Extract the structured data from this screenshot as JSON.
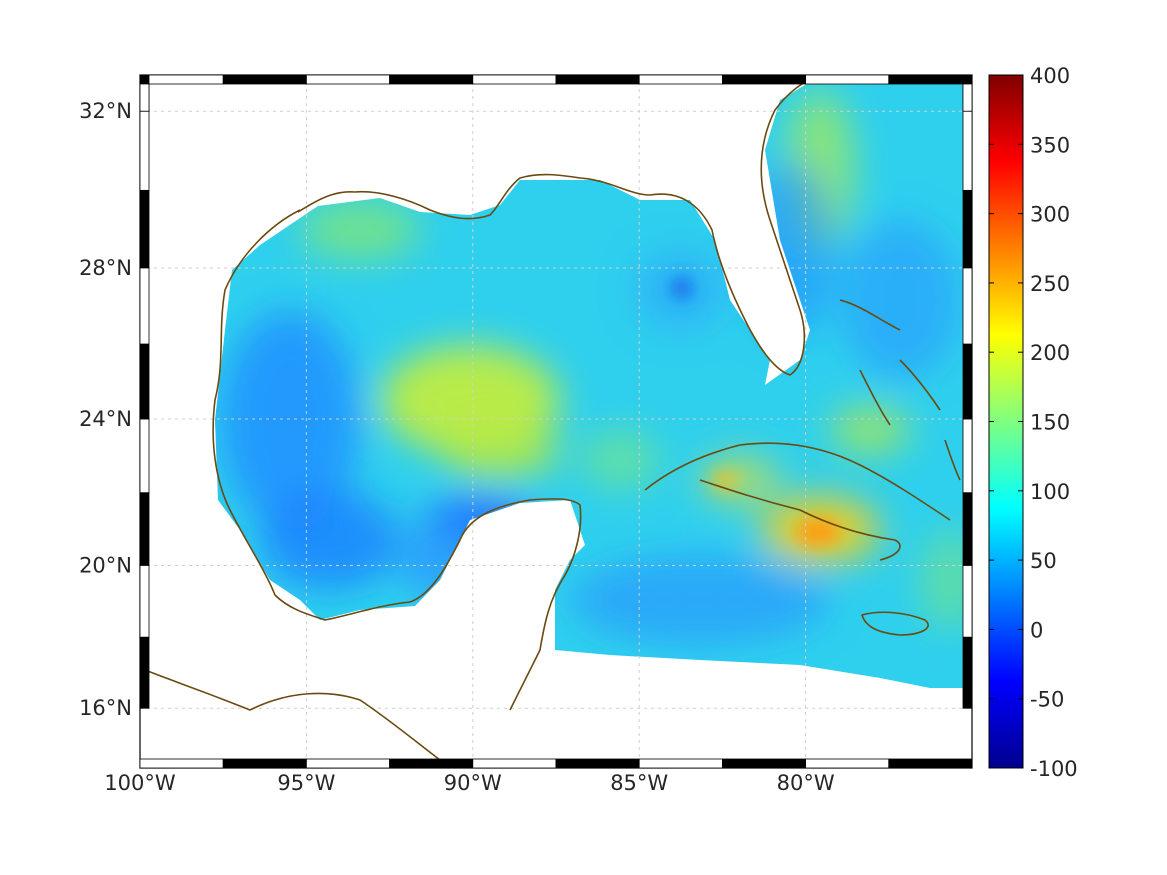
{
  "map": {
    "lon_range": [
      -100,
      -75
    ],
    "lat_range": [
      14.3,
      32.9
    ],
    "projection": "mercator",
    "grid": true,
    "coastline_color": "#6b4a10",
    "lon_ticks": [
      {
        "value": -100,
        "label": "100°W"
      },
      {
        "value": -95,
        "label": "95°W"
      },
      {
        "value": -90,
        "label": "90°W"
      },
      {
        "value": -85,
        "label": "85°W"
      },
      {
        "value": -80,
        "label": "80°W"
      }
    ],
    "lat_ticks": [
      {
        "value": 16,
        "label": "16°N"
      },
      {
        "value": 20,
        "label": "20°N"
      },
      {
        "value": 24,
        "label": "24°N"
      },
      {
        "value": 28,
        "label": "28°N"
      },
      {
        "value": 32,
        "label": "32°N"
      }
    ]
  },
  "colorbar": {
    "range": [
      -100,
      400
    ],
    "colormap": "jet",
    "ticks": [
      {
        "value": 400,
        "label": "400"
      },
      {
        "value": 350,
        "label": "350"
      },
      {
        "value": 300,
        "label": "300"
      },
      {
        "value": 250,
        "label": "250"
      },
      {
        "value": 200,
        "label": "200"
      },
      {
        "value": 150,
        "label": "150"
      },
      {
        "value": 100,
        "label": "100"
      },
      {
        "value": 50,
        "label": "50"
      },
      {
        "value": 0,
        "label": "0"
      },
      {
        "value": -50,
        "label": "-50"
      },
      {
        "value": -100,
        "label": "-100"
      }
    ]
  }
}
